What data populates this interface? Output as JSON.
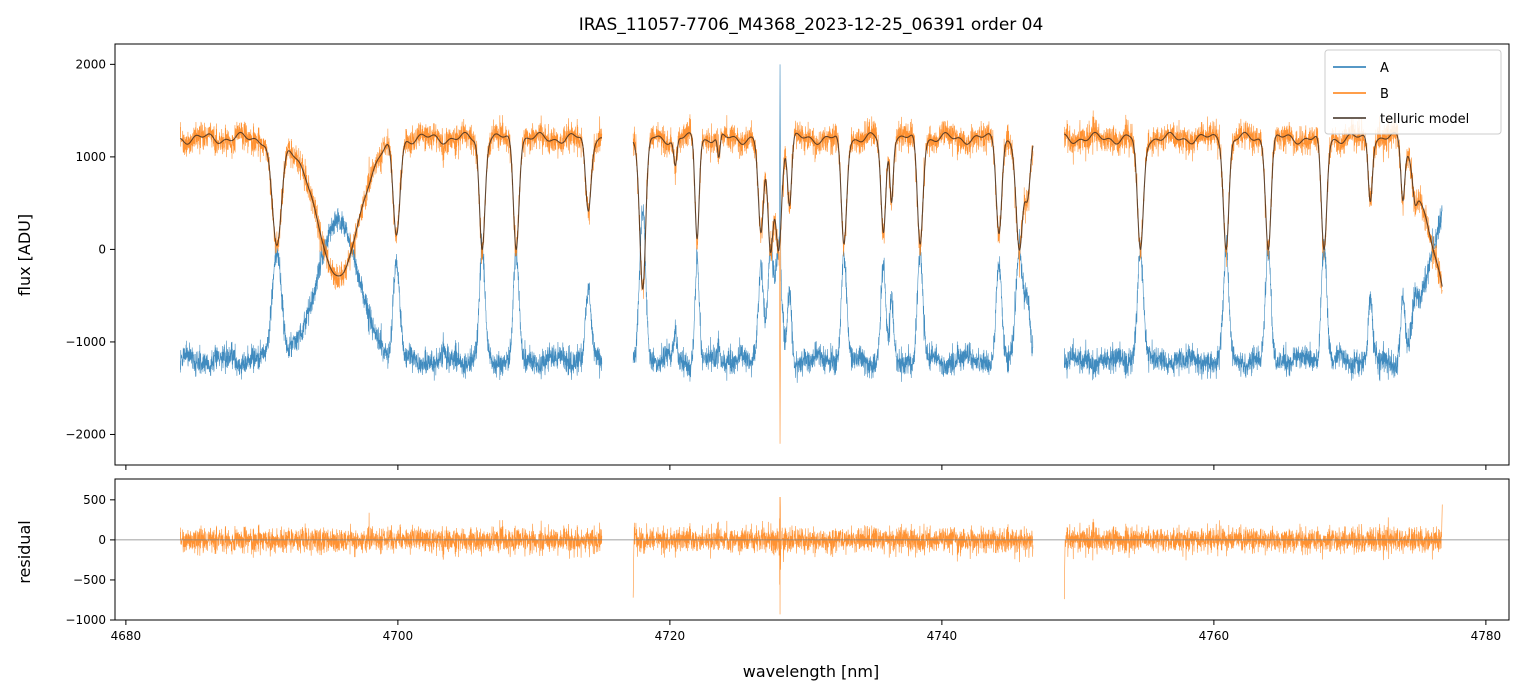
{
  "figure": {
    "title": "IRAS_11057-7706_M4368_2023-12-25_06391  order 04"
  },
  "colors": {
    "A": "#1f77b4",
    "B": "#ff7f0e",
    "telluric_model": "#3b2b1f",
    "zero_line": "#808080",
    "axes": "#000000",
    "background": "#ffffff"
  },
  "chart_data": [
    {
      "type": "line",
      "panel": "main",
      "ylabel": "flux [ADU]",
      "xlabel": "",
      "xlim": [
        4679.2,
        4781.7
      ],
      "ylim": [
        -2330,
        2220
      ],
      "x_ticks": [
        4680,
        4700,
        4720,
        4740,
        4760,
        4780
      ],
      "x_tick_labels_shown": false,
      "y_ticks": [
        -2000,
        -1000,
        0,
        1000,
        2000
      ],
      "y_tick_labels": [
        "−2000",
        "−1000",
        "0",
        "1000",
        "2000"
      ],
      "grid": false,
      "legend": {
        "placement": "top-right",
        "entries": [
          "A",
          "B",
          "telluric model"
        ]
      },
      "segments_x": [
        [
          4684.0,
          4715.0
        ],
        [
          4717.3,
          4746.7
        ],
        [
          4749.0,
          4776.8
        ]
      ],
      "continuum": 1200,
      "continuum_end": {
        "x": 4774.0,
        "drops_to": -400
      },
      "telluric_lines": [
        {
          "center": 4691.1,
          "depth": 0.95,
          "width": 0.35
        },
        {
          "center": 4695.6,
          "depth": 1.25,
          "width": 1.5
        },
        {
          "center": 4699.9,
          "depth": 0.85,
          "width": 0.25
        },
        {
          "center": 4706.2,
          "depth": 1.0,
          "width": 0.2
        },
        {
          "center": 4708.7,
          "depth": 1.0,
          "width": 0.2
        },
        {
          "center": 4714.0,
          "depth": 0.65,
          "width": 0.2
        },
        {
          "center": 4718.0,
          "depth": 1.35,
          "width": 0.22
        },
        {
          "center": 4720.4,
          "depth": 0.25,
          "width": 0.12
        },
        {
          "center": 4722.0,
          "depth": 0.9,
          "width": 0.15
        },
        {
          "center": 4723.6,
          "depth": 0.2,
          "width": 0.1
        },
        {
          "center": 4726.7,
          "depth": 0.85,
          "width": 0.2
        },
        {
          "center": 4727.4,
          "depth": 1.0,
          "width": 0.2
        },
        {
          "center": 4728.0,
          "depth": 1.0,
          "width": 0.22
        },
        {
          "center": 4728.8,
          "depth": 0.6,
          "width": 0.15
        },
        {
          "center": 4732.8,
          "depth": 0.95,
          "width": 0.2
        },
        {
          "center": 4735.7,
          "depth": 0.85,
          "width": 0.18
        },
        {
          "center": 4736.3,
          "depth": 0.55,
          "width": 0.12
        },
        {
          "center": 4738.4,
          "depth": 0.95,
          "width": 0.2
        },
        {
          "center": 4744.2,
          "depth": 0.85,
          "width": 0.2
        },
        {
          "center": 4745.7,
          "depth": 1.0,
          "width": 0.25
        },
        {
          "center": 4746.3,
          "depth": 0.5,
          "width": 0.2
        },
        {
          "center": 4754.6,
          "depth": 1.0,
          "width": 0.22
        },
        {
          "center": 4760.9,
          "depth": 1.0,
          "width": 0.2
        },
        {
          "center": 4764.0,
          "depth": 1.0,
          "width": 0.2
        },
        {
          "center": 4768.1,
          "depth": 1.0,
          "width": 0.2
        },
        {
          "center": 4771.5,
          "depth": 0.55,
          "width": 0.15
        },
        {
          "center": 4773.9,
          "depth": 0.55,
          "width": 0.15
        },
        {
          "center": 4774.8,
          "depth": 0.3,
          "width": 0.15
        }
      ],
      "spikes": [
        {
          "x": 4728.1,
          "A": 2000,
          "B": -2100
        }
      ],
      "series": [
        {
          "name": "A",
          "color": "#1f77b4",
          "description_value": "approximately inverse of B: about -1200 continuum with absorption lines rising toward 0"
        },
        {
          "name": "B",
          "color": "#ff7f0e",
          "description_value": "about +1200 continuum with absorption lines dropping toward 0"
        },
        {
          "name": "telluric model",
          "color": "#3b2b1f",
          "description_value": "smooth model following B"
        }
      ]
    },
    {
      "type": "line",
      "panel": "residual",
      "ylabel": "residual",
      "xlabel": "wavelength [nm]",
      "xlim": [
        4679.2,
        4781.7
      ],
      "ylim": [
        -1000,
        760
      ],
      "x_ticks": [
        4680,
        4700,
        4720,
        4740,
        4760,
        4780
      ],
      "x_tick_labels": [
        "4680",
        "4700",
        "4720",
        "4740",
        "4760",
        "4780"
      ],
      "y_ticks": [
        -1000,
        -500,
        0,
        500
      ],
      "y_tick_labels": [
        "−1000",
        "−500",
        "0",
        "500"
      ],
      "zero_line": 0,
      "grid": false,
      "noise_std": 75,
      "spikes": [
        {
          "x": 4728.1,
          "up": 670,
          "down": -930
        },
        {
          "x": 4717.3,
          "down": -720
        },
        {
          "x": 4749.0,
          "down": -740
        },
        {
          "x": 4776.8,
          "up": 510
        }
      ],
      "series": [
        {
          "name": "B",
          "color": "#ff7f0e"
        }
      ]
    }
  ]
}
